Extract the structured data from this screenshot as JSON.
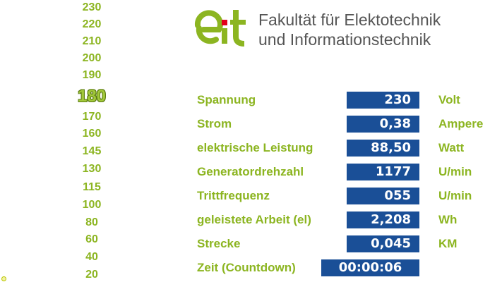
{
  "scale": {
    "values": [
      "230",
      "220",
      "210",
      "200",
      "190",
      "180",
      "170",
      "160",
      "145",
      "130",
      "115",
      "100",
      "80",
      "60",
      "40",
      "20"
    ],
    "current": "180"
  },
  "header": {
    "logo_text": "eit",
    "faculty_line1": "Fakultät für Elektotechnik",
    "faculty_line2": "und Informationstechnik"
  },
  "measurements": [
    {
      "label": "Spannung",
      "value": "230",
      "unit": "Volt"
    },
    {
      "label": "Strom",
      "value": "0,38",
      "unit": "Ampere"
    },
    {
      "label": "elektrische Leistung",
      "value": "88,50",
      "unit": "Watt"
    },
    {
      "label": "Generatordrehzahl",
      "value": "1177",
      "unit": "U/min"
    },
    {
      "label": "Trittfrequenz",
      "value": "055",
      "unit": "U/min"
    },
    {
      "label": "geleistete Arbeit (el)",
      "value": "2,208",
      "unit": "Wh"
    },
    {
      "label": "Strecke",
      "value": "0,045",
      "unit": "KM"
    },
    {
      "label": "Zeit (Countdown)",
      "value": "00:00:06",
      "unit": ""
    }
  ],
  "colors": {
    "accent_green": "#8cb521",
    "value_box_blue": "#1a4f97",
    "logo_red": "#e3001b",
    "text_gray": "#555555"
  }
}
